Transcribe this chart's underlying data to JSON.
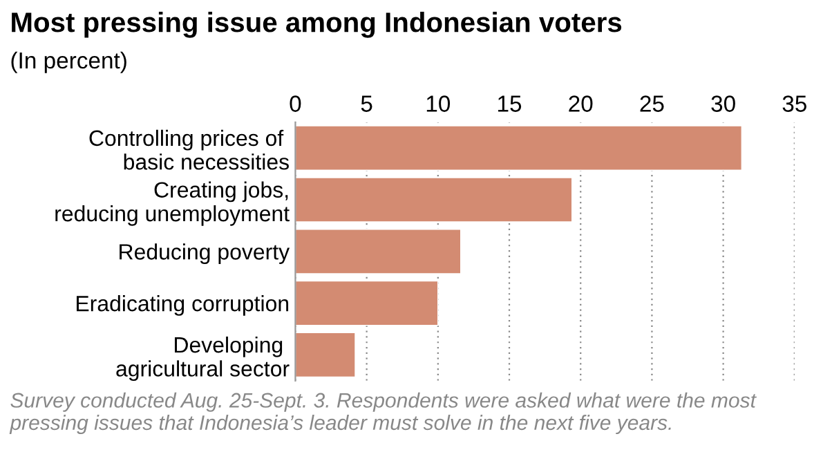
{
  "chart_data": {
    "type": "bar",
    "orientation": "horizontal",
    "title": "Most pressing issue among Indonesian voters",
    "subtitle": "(In percent)",
    "categories": [
      "Controlling prices of \nbasic necessities",
      "Creating jobs,\nreducing unemployment",
      "Reducing poverty",
      "Eradicating corruption",
      "Developing \nagricultural sector"
    ],
    "values": [
      31.3,
      19.4,
      11.6,
      10.0,
      4.2
    ],
    "color": "#d38b72",
    "xlim": [
      0,
      35
    ],
    "xticks": [
      0,
      5,
      10,
      15,
      20,
      25,
      30,
      35
    ],
    "grid": "x",
    "legend": false,
    "annotations": [
      "Survey conducted Aug. 25-Sept. 3. Respondents were asked what were the most pressing issues that Indonesia’s leader must solve in the next five years."
    ]
  }
}
